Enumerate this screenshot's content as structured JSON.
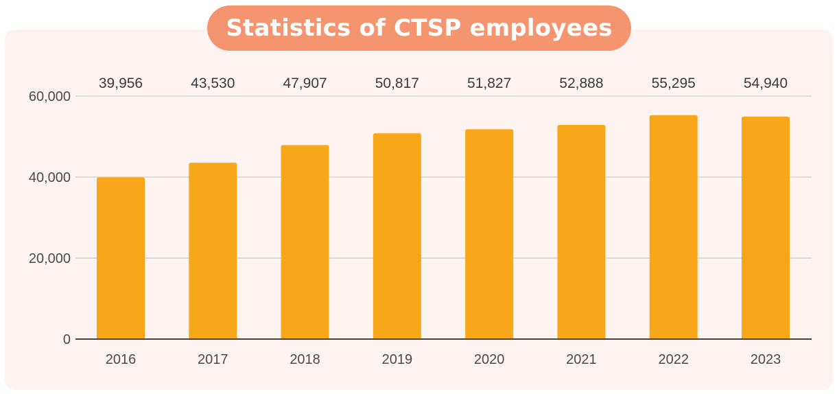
{
  "title": "Statistics of CTSP employees",
  "colors": {
    "bar": "#f8a71a",
    "title_bg": "#f4956f",
    "panel_bg": "#fdf4f1",
    "grid": "#d4d4d4",
    "axis": "#444444"
  },
  "chart_data": {
    "type": "bar",
    "title": "Statistics of CTSP employees",
    "categories": [
      "2016",
      "2017",
      "2018",
      "2019",
      "2020",
      "2021",
      "2022",
      "2023"
    ],
    "values": [
      39956,
      43530,
      47907,
      50817,
      51827,
      52888,
      55295,
      54940
    ],
    "value_labels": [
      "39,956",
      "43,530",
      "47,907",
      "50,817",
      "51,827",
      "52,888",
      "55,295",
      "54,940"
    ],
    "ylim": [
      0,
      60000
    ],
    "yticks": [
      0,
      20000,
      40000,
      60000
    ],
    "ytick_labels": [
      "0",
      "20,000",
      "40,000",
      "60,000"
    ],
    "xlabel": "",
    "ylabel": "",
    "grid": true,
    "legend": "none"
  }
}
